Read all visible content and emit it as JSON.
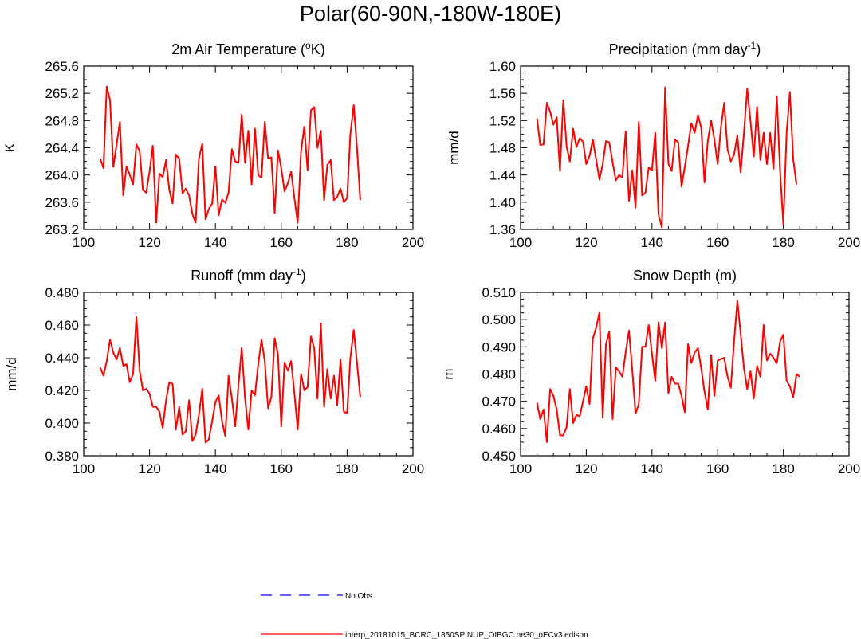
{
  "figure": {
    "title": "Polar(60-90N,-180W-180E)"
  },
  "legend": {
    "items": [
      {
        "label": "No Obs",
        "color": "#0000ff",
        "dash": "dashed"
      },
      {
        "label": "interp_20181015_BCRC_1850SPINUP_OIBGC.ne30_oECv3.edison",
        "color": "#ff0000",
        "dash": "solid"
      }
    ]
  },
  "chart_data": [
    {
      "type": "line",
      "title": "2m Air Temperature (°K)",
      "title_parts": {
        "pre": "2m Air Temperature (",
        "sup": "o",
        "post": "K)"
      },
      "xlabel": "",
      "ylabel": "K",
      "xlim": [
        100,
        200
      ],
      "ylim": [
        263.2,
        265.6
      ],
      "xticks": [
        "100",
        "120",
        "140",
        "160",
        "180",
        "200"
      ],
      "yticks": [
        "263.2",
        "263.6",
        "264.0",
        "264.4",
        "264.8",
        "265.2",
        "265.6"
      ],
      "series": [
        {
          "color": "#ff0000",
          "x_start": 105,
          "x_step": 1,
          "values": [
            264.24,
            264.1,
            265.3,
            265.1,
            264.12,
            264.45,
            264.78,
            263.7,
            264.13,
            264.0,
            263.86,
            264.45,
            264.35,
            263.78,
            263.74,
            264.05,
            264.43,
            263.3,
            264.02,
            263.97,
            264.22,
            263.78,
            263.58,
            264.3,
            264.24,
            263.73,
            263.8,
            263.7,
            263.43,
            263.3,
            264.24,
            264.46,
            263.35,
            263.5,
            263.58,
            264.13,
            263.41,
            263.64,
            263.59,
            263.74,
            264.38,
            264.2,
            264.18,
            264.89,
            264.18,
            264.65,
            263.86,
            264.68,
            264.0,
            263.96,
            264.78,
            264.24,
            264.26,
            263.44,
            264.36,
            264.1,
            263.76,
            263.88,
            264.05,
            263.66,
            263.3,
            264.35,
            264.71,
            264.07,
            264.95,
            265.0,
            264.4,
            264.65,
            263.63,
            264.15,
            264.22,
            263.63,
            263.68,
            263.8,
            263.6,
            263.66,
            264.6,
            265.03,
            264.4,
            263.63
          ]
        }
      ]
    },
    {
      "type": "line",
      "title": "Precipitation (mm day-1)",
      "title_parts": {
        "pre": "Precipitation (mm day",
        "sup": "-1",
        "post": ")"
      },
      "xlabel": "",
      "ylabel": "mm/d",
      "xlim": [
        100,
        200
      ],
      "ylim": [
        1.36,
        1.6
      ],
      "xticks": [
        "100",
        "120",
        "140",
        "160",
        "180",
        "200"
      ],
      "yticks": [
        "1.36",
        "1.40",
        "1.44",
        "1.48",
        "1.52",
        "1.56",
        "1.60"
      ],
      "series": [
        {
          "color": "#ff0000",
          "x_start": 105,
          "x_step": 1,
          "values": [
            1.523,
            1.484,
            1.485,
            1.546,
            1.533,
            1.514,
            1.525,
            1.446,
            1.55,
            1.482,
            1.46,
            1.508,
            1.481,
            1.494,
            1.489,
            1.456,
            1.468,
            1.492,
            1.463,
            1.433,
            1.456,
            1.49,
            1.488,
            1.459,
            1.432,
            1.44,
            1.436,
            1.504,
            1.402,
            1.447,
            1.392,
            1.518,
            1.41,
            1.414,
            1.451,
            1.447,
            1.502,
            1.382,
            1.363,
            1.569,
            1.457,
            1.446,
            1.492,
            1.488,
            1.423,
            1.452,
            1.483,
            1.516,
            1.502,
            1.528,
            1.509,
            1.429,
            1.49,
            1.52,
            1.492,
            1.456,
            1.51,
            1.546,
            1.478,
            1.46,
            1.47,
            1.498,
            1.444,
            1.502,
            1.567,
            1.519,
            1.467,
            1.54,
            1.462,
            1.502,
            1.456,
            1.502,
            1.449,
            1.556,
            1.446,
            1.367,
            1.502,
            1.562,
            1.463,
            1.426
          ]
        }
      ]
    },
    {
      "type": "line",
      "title": "Runoff (mm day-1)",
      "title_parts": {
        "pre": "Runoff (mm day",
        "sup": "-1",
        "post": ")"
      },
      "xlabel": "",
      "ylabel": "mm/d",
      "xlim": [
        100,
        200
      ],
      "ylim": [
        0.38,
        0.48
      ],
      "xticks": [
        "100",
        "120",
        "140",
        "160",
        "180",
        "200"
      ],
      "yticks": [
        "0.380",
        "0.400",
        "0.420",
        "0.440",
        "0.460",
        "0.480"
      ],
      "series": [
        {
          "color": "#ff0000",
          "x_start": 105,
          "x_step": 1,
          "values": [
            0.434,
            0.429,
            0.438,
            0.451,
            0.443,
            0.439,
            0.446,
            0.435,
            0.436,
            0.425,
            0.43,
            0.465,
            0.432,
            0.42,
            0.421,
            0.418,
            0.41,
            0.41,
            0.407,
            0.397,
            0.414,
            0.425,
            0.424,
            0.396,
            0.41,
            0.393,
            0.395,
            0.414,
            0.389,
            0.393,
            0.405,
            0.421,
            0.388,
            0.39,
            0.401,
            0.413,
            0.417,
            0.401,
            0.392,
            0.429,
            0.415,
            0.398,
            0.423,
            0.446,
            0.415,
            0.396,
            0.42,
            0.417,
            0.436,
            0.451,
            0.438,
            0.409,
            0.416,
            0.452,
            0.442,
            0.398,
            0.437,
            0.432,
            0.438,
            0.418,
            0.396,
            0.43,
            0.42,
            0.422,
            0.453,
            0.446,
            0.415,
            0.461,
            0.41,
            0.433,
            0.415,
            0.429,
            0.411,
            0.439,
            0.407,
            0.406,
            0.44,
            0.457,
            0.437,
            0.416
          ]
        }
      ]
    },
    {
      "type": "line",
      "title": "Snow Depth (m)",
      "title_parts": {
        "pre": "Snow Depth (m)",
        "sup": "",
        "post": ""
      },
      "xlabel": "",
      "ylabel": "m",
      "xlim": [
        100,
        200
      ],
      "ylim": [
        0.45,
        0.51
      ],
      "xticks": [
        "100",
        "120",
        "140",
        "160",
        "180",
        "200"
      ],
      "yticks": [
        "0.450",
        "0.460",
        "0.470",
        "0.480",
        "0.490",
        "0.500",
        "0.510"
      ],
      "series": [
        {
          "color": "#ff0000",
          "x_start": 105,
          "x_step": 1,
          "values": [
            0.4695,
            0.4635,
            0.467,
            0.455,
            0.4745,
            0.472,
            0.467,
            0.4575,
            0.4575,
            0.4605,
            0.4745,
            0.462,
            0.465,
            0.4645,
            0.47,
            0.4755,
            0.469,
            0.493,
            0.497,
            0.5025,
            0.464,
            0.491,
            0.4955,
            0.4635,
            0.4825,
            0.481,
            0.479,
            0.488,
            0.496,
            0.4815,
            0.4655,
            0.469,
            0.49,
            0.49,
            0.498,
            0.4875,
            0.4775,
            0.499,
            0.4895,
            0.499,
            0.473,
            0.479,
            0.4765,
            0.4765,
            0.472,
            0.466,
            0.491,
            0.484,
            0.488,
            0.4895,
            0.482,
            0.4735,
            0.467,
            0.487,
            0.472,
            0.485,
            0.4855,
            0.486,
            0.479,
            0.475,
            0.492,
            0.507,
            0.495,
            0.482,
            0.4745,
            0.481,
            0.471,
            0.483,
            0.479,
            0.498,
            0.485,
            0.4875,
            0.486,
            0.484,
            0.492,
            0.4945,
            0.4775,
            0.4755,
            0.4715,
            0.48,
            0.479
          ]
        }
      ]
    }
  ]
}
